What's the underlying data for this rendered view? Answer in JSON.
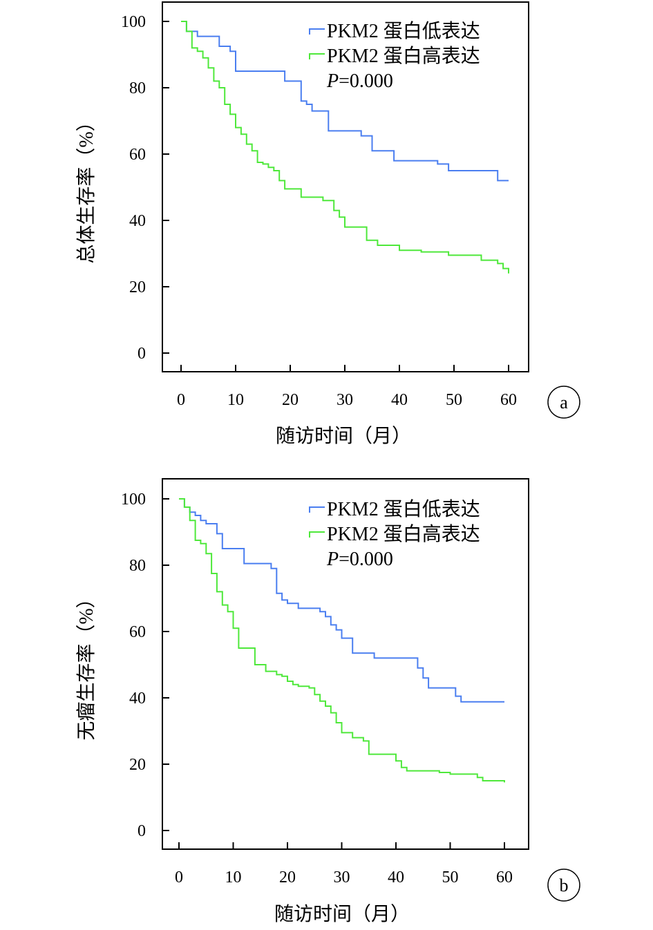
{
  "series_colors": {
    "low": "#4a7ef0",
    "high": "#4ee83a"
  },
  "chart_data": [
    {
      "type": "line",
      "step": true,
      "panel_label": "a",
      "xlabel": "随访时间（月）",
      "ylabel": "总体生存率（%）",
      "xlim": [
        0,
        60
      ],
      "ylim": [
        0,
        100
      ],
      "xticks": [
        0,
        10,
        20,
        30,
        40,
        50,
        60
      ],
      "yticks": [
        0,
        20,
        40,
        60,
        80,
        100
      ],
      "annotation": {
        "italic": "P",
        "rest": "=0.000"
      },
      "series": [
        {
          "name": "PKM2 蛋白低表达",
          "color": "#4a7ef0",
          "x": [
            0,
            1,
            3,
            7,
            9,
            10,
            19,
            22,
            23,
            24,
            27,
            33,
            35,
            39,
            47,
            49,
            58,
            60
          ],
          "y": [
            100,
            97,
            95.5,
            92.5,
            91,
            85,
            82,
            76,
            75,
            73,
            67,
            65.5,
            61,
            58,
            57,
            55,
            52,
            52
          ]
        },
        {
          "name": "PKM2 蛋白高表达",
          "color": "#4ee83a",
          "x": [
            0,
            1,
            2,
            3,
            4,
            5,
            6,
            7,
            8,
            9,
            10,
            11,
            12,
            13,
            14,
            15,
            16,
            17,
            18,
            19,
            22,
            26,
            28,
            29,
            30,
            34,
            36,
            40,
            44,
            49,
            55,
            58,
            59,
            60
          ],
          "y": [
            100,
            97,
            92,
            91,
            89,
            86,
            82,
            80,
            75,
            72,
            68,
            66,
            63,
            61,
            57.5,
            57,
            56,
            55,
            52,
            49.5,
            47,
            46,
            43,
            41,
            38,
            34,
            32.5,
            31,
            30.5,
            29.5,
            28,
            27,
            25.5,
            24
          ]
        }
      ]
    },
    {
      "type": "line",
      "step": true,
      "panel_label": "b",
      "xlabel": "随访时间（月）",
      "ylabel": "无瘤生存率（%）",
      "xlim": [
        0,
        60
      ],
      "ylim": [
        0,
        100
      ],
      "xticks": [
        0,
        10,
        20,
        30,
        40,
        50,
        60
      ],
      "yticks": [
        0,
        20,
        40,
        60,
        80,
        100
      ],
      "annotation": {
        "italic": "P",
        "rest": "=0.000"
      },
      "series": [
        {
          "name": "PKM2 蛋白低表达",
          "color": "#4a7ef0",
          "x": [
            0,
            1,
            2,
            3,
            4,
            5,
            7,
            8,
            12,
            17,
            18,
            19,
            20,
            22,
            26,
            27,
            28,
            29,
            30,
            32,
            36,
            44,
            45,
            46,
            51,
            52,
            60
          ],
          "y": [
            100,
            97.5,
            96,
            95,
            93.5,
            92.5,
            89.5,
            85,
            80.5,
            79,
            71.5,
            69.5,
            68.5,
            67,
            66,
            64.5,
            62,
            60.5,
            58,
            53.5,
            52,
            49,
            46,
            43,
            40.5,
            38.8,
            38.8
          ]
        },
        {
          "name": "PKM2 蛋白高表达",
          "color": "#4ee83a",
          "x": [
            0,
            1,
            2,
            3,
            4,
            5,
            6,
            7,
            8,
            9,
            10,
            11,
            14,
            16,
            18,
            19,
            20,
            21,
            22,
            24,
            25,
            26,
            27,
            28,
            29,
            30,
            32,
            34,
            35,
            40,
            41,
            42,
            48,
            50,
            55,
            56,
            60
          ],
          "y": [
            100,
            97.5,
            93.5,
            87.5,
            86.5,
            83.5,
            77.5,
            72,
            68,
            66,
            61,
            55,
            50,
            48,
            47,
            46.5,
            45,
            44,
            43.5,
            43,
            41,
            39,
            37.5,
            35.5,
            32.5,
            29.5,
            28,
            27,
            23,
            21,
            19,
            18,
            17.5,
            17,
            16,
            15,
            14.5
          ]
        }
      ]
    }
  ]
}
